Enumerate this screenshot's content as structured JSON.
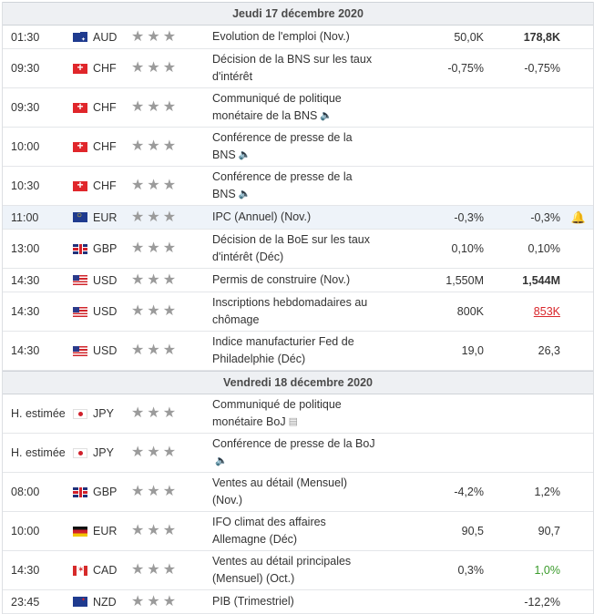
{
  "colors": {
    "header_bg": "#eef0f3",
    "highlight_row": "#eef3f9",
    "worse": "#d9262b",
    "better": "#3a9b2b",
    "star": "#9b9b9b"
  },
  "days": [
    {
      "label": "Jeudi 17 décembre 2020",
      "events": [
        {
          "time": "01:30",
          "flag": "au",
          "currency": "AUD",
          "stars": 3,
          "lines": [
            "Evolution de l'emploi (Nov.)"
          ],
          "icon": "",
          "actual": "50,0K",
          "forecast": "178,8K",
          "forecast_style": "bold",
          "highlight": false,
          "alert": false
        },
        {
          "time": "09:30",
          "flag": "ch",
          "currency": "CHF",
          "stars": 3,
          "lines": [
            "Décision de la BNS sur les taux",
            "d'intérêt"
          ],
          "icon": "",
          "actual": "-0,75%",
          "forecast": "-0,75%",
          "forecast_style": "",
          "highlight": false,
          "alert": false
        },
        {
          "time": "09:30",
          "flag": "ch",
          "currency": "CHF",
          "stars": 3,
          "lines": [
            "Communiqué de politique",
            "monétaire de la BNS"
          ],
          "icon": "🔈",
          "actual": "",
          "forecast": "",
          "forecast_style": "",
          "highlight": false,
          "alert": false
        },
        {
          "time": "10:00",
          "flag": "ch",
          "currency": "CHF",
          "stars": 3,
          "lines": [
            "Conférence de presse de la",
            "BNS"
          ],
          "icon": "🔈",
          "actual": "",
          "forecast": "",
          "forecast_style": "",
          "highlight": false,
          "alert": false
        },
        {
          "time": "10:30",
          "flag": "ch",
          "currency": "CHF",
          "stars": 3,
          "lines": [
            "Conférence de presse de la",
            "BNS"
          ],
          "icon": "🔈",
          "actual": "",
          "forecast": "",
          "forecast_style": "",
          "highlight": false,
          "alert": false
        },
        {
          "time": "11:00",
          "flag": "eu",
          "currency": "EUR",
          "stars": 3,
          "lines": [
            "IPC (Annuel) (Nov.)"
          ],
          "icon": "",
          "actual": "-0,3%",
          "forecast": "-0,3%",
          "forecast_style": "",
          "highlight": true,
          "alert": true
        },
        {
          "time": "13:00",
          "flag": "gb",
          "currency": "GBP",
          "stars": 3,
          "lines": [
            "Décision de la BoE sur les taux",
            "d'intérêt (Déc)"
          ],
          "icon": "",
          "actual": "0,10%",
          "forecast": "0,10%",
          "forecast_style": "",
          "highlight": false,
          "alert": false
        },
        {
          "time": "14:30",
          "flag": "us",
          "currency": "USD",
          "stars": 3,
          "lines": [
            "Permis de construire (Nov.)"
          ],
          "icon": "",
          "actual": "1,550M",
          "forecast": "1,544M",
          "forecast_style": "bold",
          "highlight": false,
          "alert": false
        },
        {
          "time": "14:30",
          "flag": "us",
          "currency": "USD",
          "stars": 3,
          "lines": [
            "Inscriptions hebdomadaires au",
            "chômage"
          ],
          "icon": "",
          "actual": "800K",
          "forecast": "853K",
          "forecast_style": "red",
          "highlight": false,
          "alert": false
        },
        {
          "time": "14:30",
          "flag": "us",
          "currency": "USD",
          "stars": 3,
          "lines": [
            "Indice manufacturier Fed de",
            "Philadelphie (Déc)"
          ],
          "icon": "",
          "actual": "19,0",
          "forecast": "26,3",
          "forecast_style": "",
          "highlight": false,
          "alert": false
        }
      ]
    },
    {
      "label": "Vendredi 18 décembre 2020",
      "events": [
        {
          "time": "H. estimée",
          "flag": "jp",
          "currency": "JPY",
          "stars": 3,
          "lines": [
            "Communiqué de politique",
            "monétaire BoJ"
          ],
          "icon": "▤",
          "actual": "",
          "forecast": "",
          "forecast_style": "",
          "highlight": false,
          "alert": false
        },
        {
          "time": "H. estimée",
          "flag": "jp",
          "currency": "JPY",
          "stars": 3,
          "lines": [
            "Conférence de presse de la BoJ",
            ""
          ],
          "icon": "🔈",
          "actual": "",
          "forecast": "",
          "forecast_style": "",
          "highlight": false,
          "alert": false
        },
        {
          "time": "08:00",
          "flag": "gb",
          "currency": "GBP",
          "stars": 3,
          "lines": [
            "Ventes au détail (Mensuel)",
            "(Nov.)"
          ],
          "icon": "",
          "actual": "-4,2%",
          "forecast": "1,2%",
          "forecast_style": "",
          "highlight": false,
          "alert": false
        },
        {
          "time": "10:00",
          "flag": "de",
          "currency": "EUR",
          "stars": 3,
          "lines": [
            "IFO climat des affaires",
            "Allemagne (Déc)"
          ],
          "icon": "",
          "actual": "90,5",
          "forecast": "90,7",
          "forecast_style": "",
          "highlight": false,
          "alert": false
        },
        {
          "time": "14:30",
          "flag": "ca",
          "currency": "CAD",
          "stars": 3,
          "lines": [
            "Ventes au détail principales",
            "(Mensuel) (Oct.)"
          ],
          "icon": "",
          "actual": "0,3%",
          "forecast": "1,0%",
          "forecast_style": "green",
          "highlight": false,
          "alert": false
        },
        {
          "time": "23:45",
          "flag": "nz",
          "currency": "NZD",
          "stars": 3,
          "lines": [
            "PIB (Trimestriel)"
          ],
          "icon": "",
          "actual": "",
          "forecast": "-12,2%",
          "forecast_style": "",
          "highlight": false,
          "alert": false
        }
      ]
    }
  ]
}
